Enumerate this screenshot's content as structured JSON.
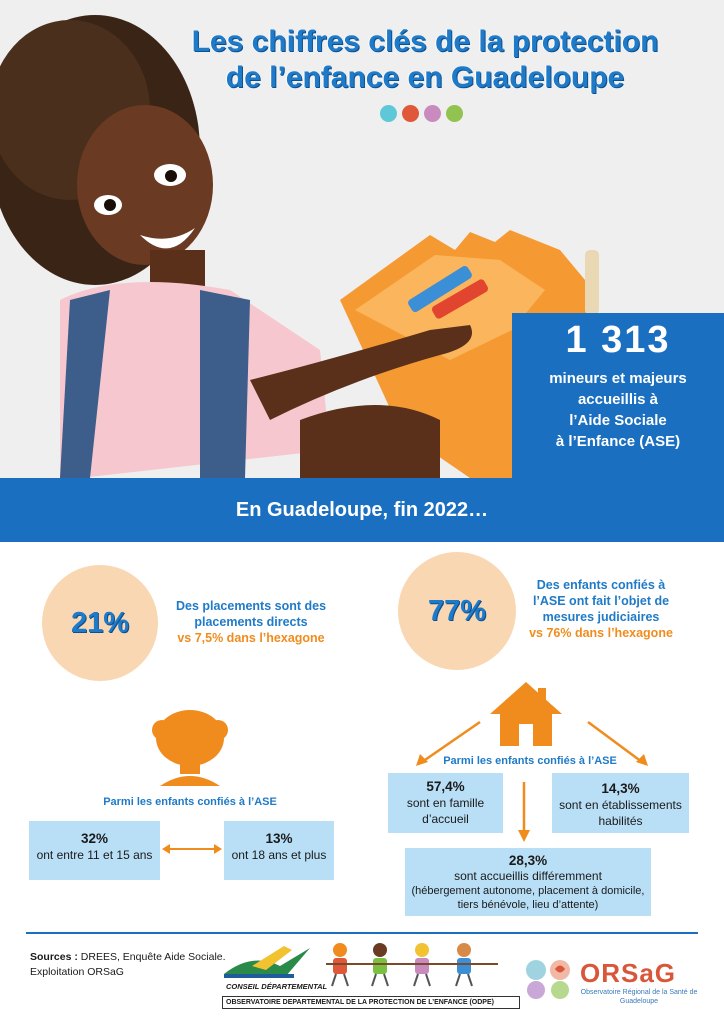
{
  "title": {
    "line1": "Les chiffres clés de la protection",
    "line2": "de l’enfance en Guadeloupe"
  },
  "dots": [
    "#5ec8d8",
    "#e0583a",
    "#c98bbd",
    "#92c24f"
  ],
  "headline_stat": {
    "number": "1 313",
    "text": [
      "mineurs et majeurs",
      "accueillis à",
      "l’Aide Sociale",
      "à l’Enfance (ASE)"
    ]
  },
  "band": "En Guadeloupe, fin 2022…",
  "placements": {
    "percent": "21%",
    "line1": "Des placements sont des",
    "line2": "placements directs",
    "comparison": "vs 7,5% dans l’hexagone"
  },
  "judiciaires": {
    "percent": "77%",
    "line1": "Des enfants confiés à",
    "line2": "l’ASE ont fait l’objet de",
    "line3": "mesures judiciaires",
    "comparison": "vs 76% dans l’hexagone"
  },
  "age": {
    "caption": "Parmi les enfants confiés à l’ASE",
    "left": {
      "value": "32%",
      "text": "ont entre 11 et 15 ans"
    },
    "right": {
      "value": "13%",
      "text": "ont 18 ans et plus"
    }
  },
  "accueil": {
    "caption": "Parmi les enfants confiés à l’ASE",
    "famille": {
      "value": "57,4%",
      "line1": "sont en famille",
      "line2": "d’accueil"
    },
    "etablissements": {
      "value": "14,3%",
      "line1": "sont en établissements",
      "line2": "habilités"
    },
    "differemment": {
      "value": "28,3%",
      "line1": "sont accueillis différemment",
      "line2": "(hébergement autonome, placement à domicile,",
      "line3": "tiers bénévole, lieu d’attente)"
    }
  },
  "footer": {
    "sources_label": "Sources :",
    "sources_text": "DREES, Enquête Aide Sociale.",
    "exploitation": "Exploitation ORSaG",
    "cd_label": "CONSEIL DÉPARTEMENTAL",
    "odpe": "OBSERVATOIRE DEPARTEMENTAL DE LA PROTECTION DE L’ENFANCE (ODPE)",
    "orsag": "ORSaG",
    "orsag_sub": "Observatoire Régional de la Santé de Guadeloupe"
  },
  "colors": {
    "blue": "#1a6fc0",
    "orange": "#f08c1e",
    "peach": "#f9d7b2",
    "lightblue": "#b9dff7"
  }
}
